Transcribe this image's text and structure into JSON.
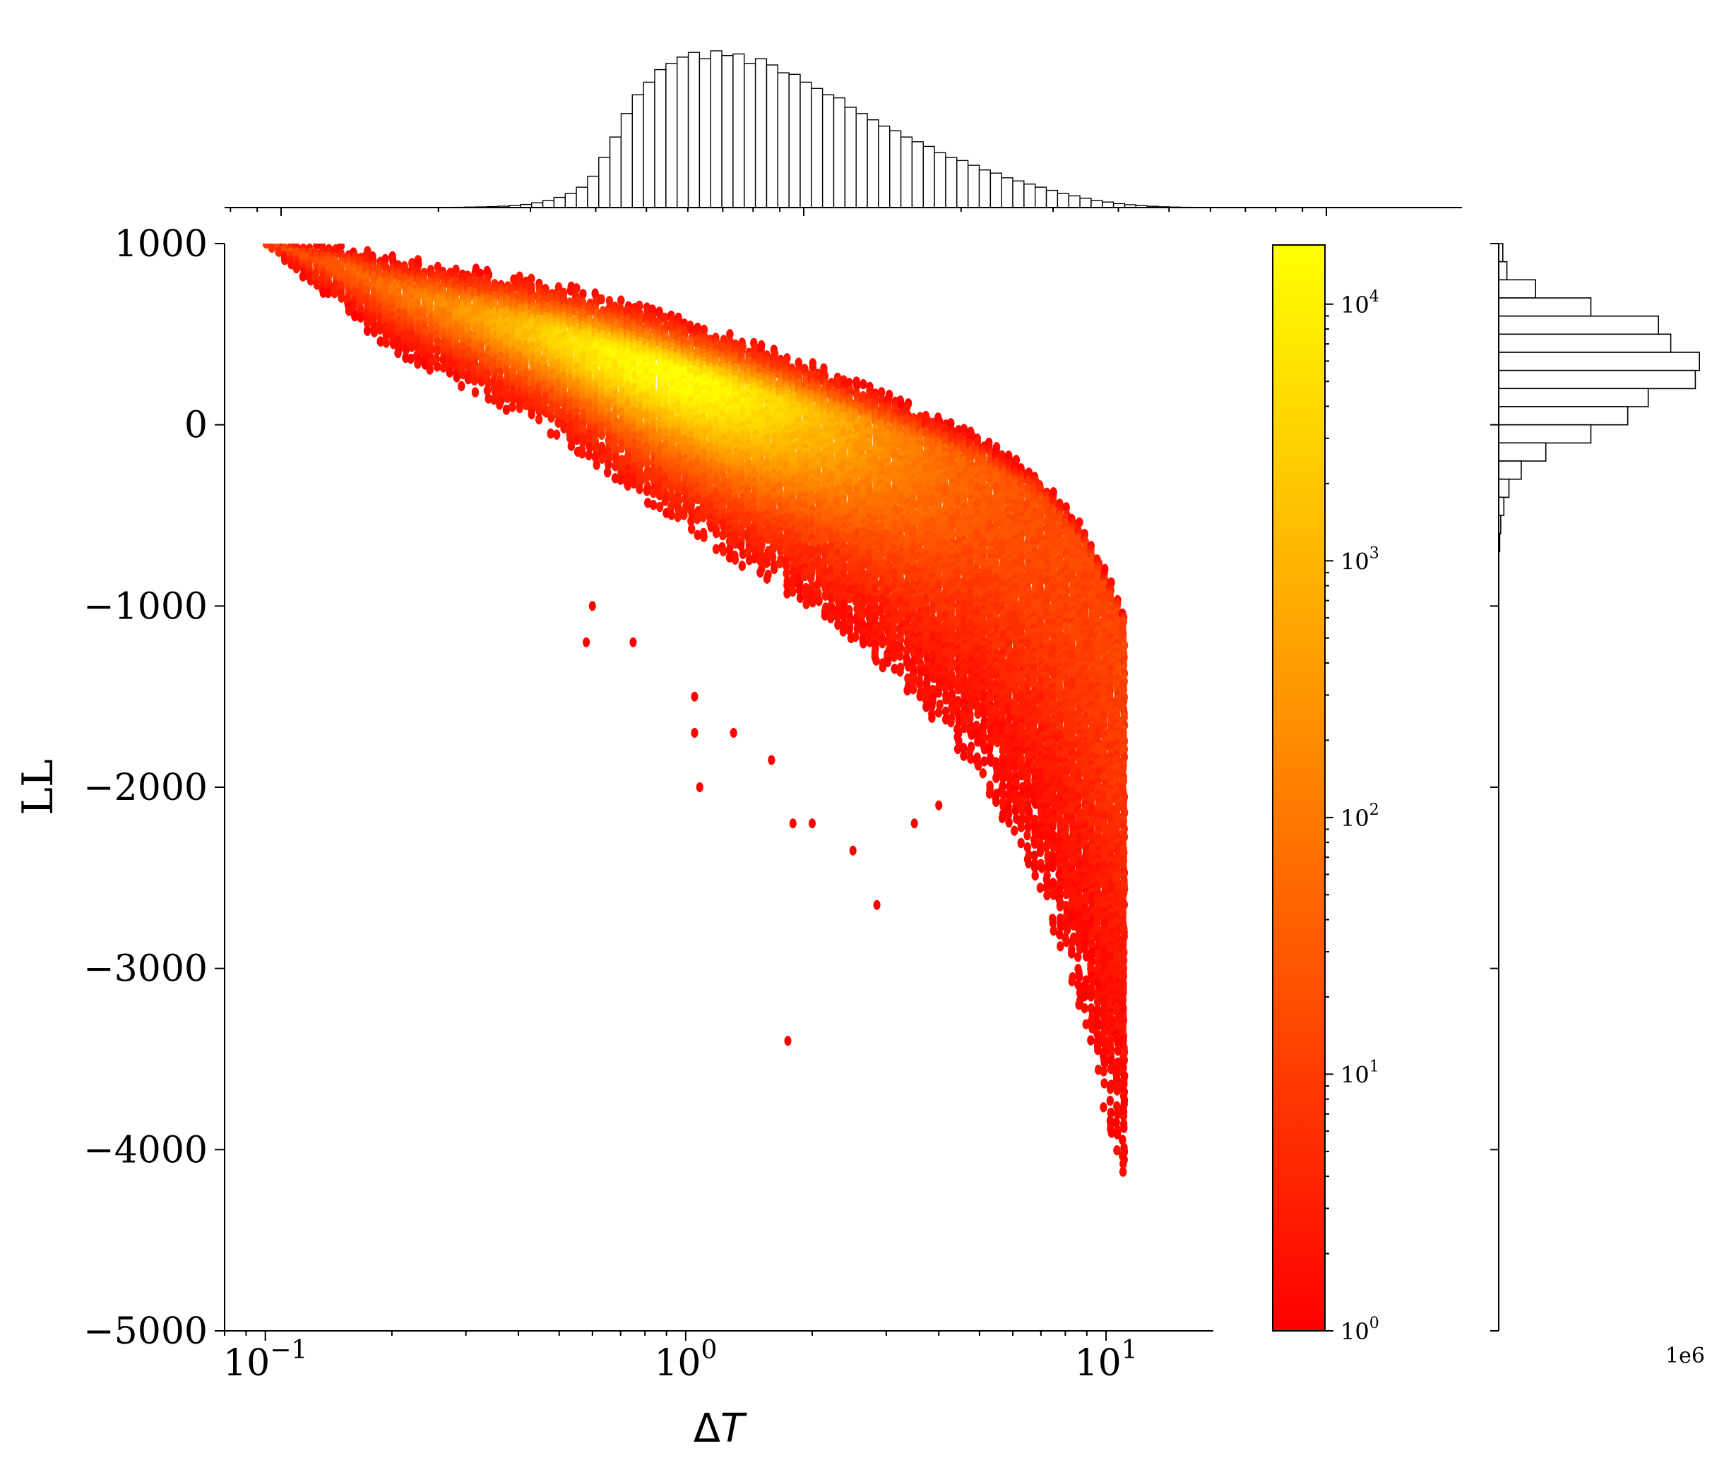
{
  "chart_data": {
    "type": "hexbin",
    "xlabel_prefix": "Δ",
    "xlabel_var": "T",
    "ylabel": "LL",
    "xscale": "log",
    "xlim": [
      0.08,
      18
    ],
    "ylim": [
      -5000,
      1000
    ],
    "xticks": [
      {
        "value": 0.1,
        "base": "10",
        "exp": "−1"
      },
      {
        "value": 1,
        "base": "10",
        "exp": "0"
      },
      {
        "value": 10,
        "base": "10",
        "exp": "1"
      }
    ],
    "yticks": [
      {
        "value": 1000,
        "label": "1000"
      },
      {
        "value": 0,
        "label": "0"
      },
      {
        "value": -1000,
        "label": "−1000"
      },
      {
        "value": -2000,
        "label": "−2000"
      },
      {
        "value": -3000,
        "label": "−3000"
      },
      {
        "value": -4000,
        "label": "−4000"
      },
      {
        "value": -5000,
        "label": "−5000"
      }
    ],
    "density": {
      "description_points": "ridge of LL versus ΔT (x, y, spread-above, spread-below)",
      "ridge": [
        [
          0.1,
          1000,
          0,
          10
        ],
        [
          0.15,
          870,
          120,
          220
        ],
        [
          0.2,
          750,
          180,
          350
        ],
        [
          0.3,
          620,
          250,
          420
        ],
        [
          0.5,
          480,
          300,
          560
        ],
        [
          0.8,
          330,
          320,
          760
        ],
        [
          1.2,
          200,
          320,
          900
        ],
        [
          2.0,
          60,
          280,
          1080
        ],
        [
          3.0,
          -60,
          230,
          1300
        ],
        [
          5.0,
          -230,
          170,
          1700
        ],
        [
          7.0,
          -420,
          130,
          2150
        ],
        [
          9.0,
          -700,
          110,
          2700
        ],
        [
          11.0,
          -1100,
          80,
          3100
        ]
      ],
      "peak_count": 17000,
      "outliers": [
        [
          0.6,
          -1000
        ],
        [
          0.58,
          -1200
        ],
        [
          0.75,
          -1200
        ],
        [
          1.05,
          -1500
        ],
        [
          1.05,
          -1700
        ],
        [
          1.08,
          -2000
        ],
        [
          1.3,
          -1700
        ],
        [
          1.6,
          -1850
        ],
        [
          1.8,
          -2200
        ],
        [
          2.0,
          -2200
        ],
        [
          2.5,
          -2350
        ],
        [
          2.85,
          -2650
        ],
        [
          1.75,
          -3400
        ],
        [
          3.5,
          -2200
        ],
        [
          4.0,
          -2100
        ]
      ]
    },
    "colorbar": {
      "scale": "log",
      "min": 1,
      "max": 17000,
      "colors": [
        "#ff0000",
        "#ffff00"
      ],
      "ticks": [
        {
          "value": 1,
          "base": "10",
          "exp": "0"
        },
        {
          "value": 10,
          "base": "10",
          "exp": "1"
        },
        {
          "value": 100,
          "base": "10",
          "exp": "2"
        },
        {
          "value": 1000,
          "base": "10",
          "exp": "3"
        },
        {
          "value": 10000,
          "base": "10",
          "exp": "4"
        }
      ]
    },
    "marginal_x": {
      "type": "histogram",
      "scale_note": "log-spaced bins",
      "bins_from": 0.28,
      "bins_to": 16,
      "bin_count": 66,
      "peak_at": 1.4,
      "counts_relative": [
        0.002,
        0.003,
        0.004,
        0.006,
        0.009,
        0.013,
        0.02,
        0.03,
        0.045,
        0.065,
        0.09,
        0.13,
        0.2,
        0.32,
        0.45,
        0.6,
        0.72,
        0.8,
        0.88,
        0.92,
        0.96,
        0.99,
        0.95,
        1.0,
        0.97,
        0.98,
        0.92,
        0.95,
        0.91,
        0.86,
        0.85,
        0.8,
        0.76,
        0.72,
        0.7,
        0.64,
        0.6,
        0.56,
        0.52,
        0.49,
        0.45,
        0.42,
        0.39,
        0.35,
        0.32,
        0.3,
        0.27,
        0.24,
        0.22,
        0.19,
        0.17,
        0.15,
        0.13,
        0.11,
        0.09,
        0.075,
        0.06,
        0.045,
        0.035,
        0.025,
        0.018,
        0.012,
        0.008,
        0.005,
        0.003,
        0.002
      ]
    },
    "marginal_y": {
      "type": "histogram",
      "offset_label": "1e6",
      "bins": [
        {
          "from": 900,
          "to": 1000,
          "count": 0.02
        },
        {
          "from": 800,
          "to": 900,
          "count": 0.04
        },
        {
          "from": 700,
          "to": 800,
          "count": 0.18
        },
        {
          "from": 600,
          "to": 700,
          "count": 0.45
        },
        {
          "from": 500,
          "to": 600,
          "count": 0.78
        },
        {
          "from": 400,
          "to": 500,
          "count": 0.84
        },
        {
          "from": 300,
          "to": 400,
          "count": 0.98
        },
        {
          "from": 200,
          "to": 300,
          "count": 0.96
        },
        {
          "from": 100,
          "to": 200,
          "count": 0.73
        },
        {
          "from": 0,
          "to": 100,
          "count": 0.63
        },
        {
          "from": -100,
          "to": 0,
          "count": 0.45
        },
        {
          "from": -200,
          "to": -100,
          "count": 0.23
        },
        {
          "from": -300,
          "to": -200,
          "count": 0.11
        },
        {
          "from": -400,
          "to": -300,
          "count": 0.05
        },
        {
          "from": -500,
          "to": -400,
          "count": 0.025
        },
        {
          "from": -600,
          "to": -500,
          "count": 0.01
        },
        {
          "from": -700,
          "to": -600,
          "count": 0.005
        }
      ]
    }
  }
}
